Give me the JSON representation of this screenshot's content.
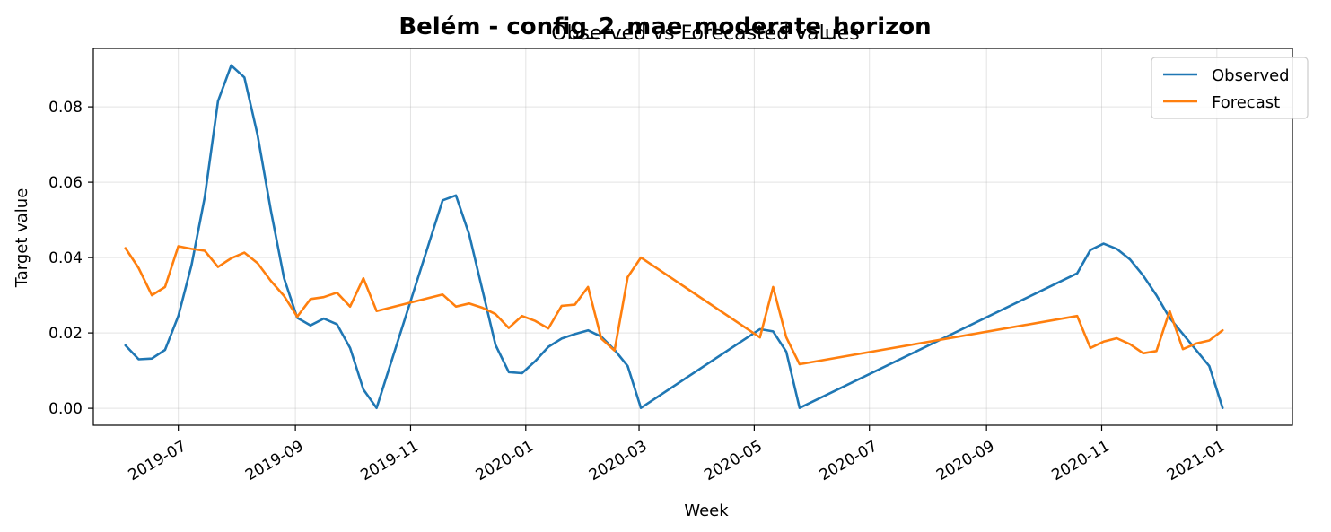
{
  "chart_data": {
    "type": "line",
    "suptitle": "Belém - config_2_mae_moderate_horizon",
    "title": "Observed vs Forecasted values",
    "xlabel": "Week",
    "ylabel": "Target value",
    "xlim": [
      "2019-05-17",
      "2021-02-10"
    ],
    "ylim": [
      -0.0045,
      0.0955
    ],
    "grid": true,
    "legend_position": "top-right",
    "x_tick_labels": [
      "2019-07",
      "2019-09",
      "2019-11",
      "2020-01",
      "2020-03",
      "2020-05",
      "2020-07",
      "2020-09",
      "2020-11",
      "2021-01"
    ],
    "x_ticks": [
      "2019-07-01",
      "2019-09-01",
      "2019-11-01",
      "2020-01-01",
      "2020-03-01",
      "2020-05-01",
      "2020-07-01",
      "2020-09-01",
      "2020-11-01",
      "2021-01-01"
    ],
    "y_tick_labels": [
      "0.00",
      "0.02",
      "0.04",
      "0.06",
      "0.08"
    ],
    "y_ticks": [
      0,
      0.02,
      0.04,
      0.06,
      0.08
    ],
    "series": [
      {
        "name": "Observed",
        "color": "#1f77b4",
        "x": [
          "2019-06-03",
          "2019-06-10",
          "2019-06-17",
          "2019-06-24",
          "2019-07-01",
          "2019-07-08",
          "2019-07-15",
          "2019-07-22",
          "2019-07-29",
          "2019-08-05",
          "2019-08-12",
          "2019-08-19",
          "2019-08-26",
          "2019-09-02",
          "2019-09-09",
          "2019-09-16",
          "2019-09-23",
          "2019-09-30",
          "2019-10-07",
          "2019-10-14",
          "2019-11-18",
          "2019-11-25",
          "2019-12-02",
          "2019-12-09",
          "2019-12-16",
          "2019-12-23",
          "2019-12-30",
          "2020-01-06",
          "2020-01-13",
          "2020-01-20",
          "2020-01-27",
          "2020-02-03",
          "2020-02-10",
          "2020-02-17",
          "2020-02-24",
          "2020-03-02",
          "2020-05-04",
          "2020-05-11",
          "2020-05-18",
          "2020-05-25",
          "2020-10-19",
          "2020-10-26",
          "2020-11-02",
          "2020-11-09",
          "2020-11-16",
          "2020-11-23",
          "2020-11-30",
          "2020-12-07",
          "2020-12-28",
          "2021-01-04"
        ],
        "values": [
          0.0167,
          0.013,
          0.0132,
          0.0155,
          0.0245,
          0.038,
          0.056,
          0.0815,
          0.091,
          0.0878,
          0.0725,
          0.0525,
          0.0345,
          0.024,
          0.022,
          0.0238,
          0.0223,
          0.016,
          0.005,
          0.0001,
          0.0552,
          0.0565,
          0.0462,
          0.0315,
          0.0168,
          0.0096,
          0.0093,
          0.0125,
          0.0163,
          0.0185,
          0.0197,
          0.0207,
          0.019,
          0.0155,
          0.0112,
          0.0001,
          0.021,
          0.0204,
          0.015,
          0.0001,
          0.0358,
          0.042,
          0.0437,
          0.0423,
          0.0395,
          0.0352,
          0.03,
          0.024,
          0.0112,
          0.0001
        ]
      },
      {
        "name": "Forecast",
        "color": "#ff7f0e",
        "x": [
          "2019-06-03",
          "2019-06-10",
          "2019-06-17",
          "2019-06-24",
          "2019-07-01",
          "2019-07-08",
          "2019-07-15",
          "2019-07-22",
          "2019-07-29",
          "2019-08-05",
          "2019-08-12",
          "2019-08-19",
          "2019-08-26",
          "2019-09-02",
          "2019-09-09",
          "2019-09-16",
          "2019-09-23",
          "2019-09-30",
          "2019-10-07",
          "2019-10-14",
          "2019-11-18",
          "2019-11-25",
          "2019-12-02",
          "2019-12-09",
          "2019-12-16",
          "2019-12-23",
          "2019-12-30",
          "2020-01-06",
          "2020-01-13",
          "2020-01-20",
          "2020-01-27",
          "2020-02-03",
          "2020-02-10",
          "2020-02-17",
          "2020-02-24",
          "2020-03-02",
          "2020-05-04",
          "2020-05-11",
          "2020-05-18",
          "2020-05-25",
          "2020-10-19",
          "2020-10-26",
          "2020-11-02",
          "2020-11-09",
          "2020-11-16",
          "2020-11-23",
          "2020-11-30",
          "2020-12-07",
          "2020-12-14",
          "2020-12-21",
          "2020-12-28",
          "2021-01-04"
        ],
        "values": [
          0.0425,
          0.0372,
          0.03,
          0.0322,
          0.043,
          0.0423,
          0.0418,
          0.0375,
          0.0398,
          0.0413,
          0.0385,
          0.0338,
          0.0298,
          0.0243,
          0.029,
          0.0295,
          0.0307,
          0.027,
          0.0345,
          0.0258,
          0.0302,
          0.027,
          0.0278,
          0.0267,
          0.025,
          0.0213,
          0.0245,
          0.0232,
          0.0212,
          0.0272,
          0.0275,
          0.0322,
          0.0185,
          0.0153,
          0.0348,
          0.04,
          0.0188,
          0.0322,
          0.0188,
          0.0117,
          0.0245,
          0.016,
          0.0177,
          0.0186,
          0.017,
          0.0146,
          0.0152,
          0.0258,
          0.0157,
          0.0172,
          0.018,
          0.0207
        ]
      }
    ]
  }
}
